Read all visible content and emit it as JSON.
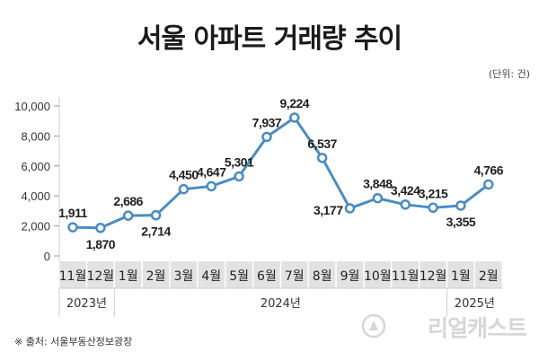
{
  "title": "서울 아파트 거래량 추이",
  "unit_label": "(단위: 건)",
  "source": "※ 출처: 서울부동산정보광장",
  "watermark": "리얼캐스트",
  "colors": {
    "line": "#4a8cc2",
    "axis_band": "#e2e2e2",
    "text": "#222222"
  },
  "chart_data": {
    "type": "line",
    "title": "서울 아파트 거래량 추이",
    "categories": [
      "11월",
      "12월",
      "1월",
      "2월",
      "3월",
      "4월",
      "5월",
      "6월",
      "7월",
      "8월",
      "9월",
      "10월",
      "11월",
      "12월",
      "1월",
      "2월"
    ],
    "groups": [
      {
        "label": "2023년",
        "start": 0,
        "end": 1
      },
      {
        "label": "2024년",
        "start": 2,
        "end": 13
      },
      {
        "label": "2025년",
        "start": 14,
        "end": 15
      }
    ],
    "series": [
      {
        "values": [
          1911,
          1870,
          2686,
          2714,
          4450,
          4647,
          5301,
          7937,
          9224,
          6537,
          3177,
          3848,
          3424,
          3215,
          3355,
          4766
        ]
      }
    ],
    "value_labels": [
      "1,911",
      "1,870",
      "2,686",
      "2,714",
      "4,450",
      "4,647",
      "5,301",
      "7,937",
      "9,224",
      "6,537",
      "3,177",
      "3,848",
      "3,424",
      "3,215",
      "3,355",
      "4,766"
    ],
    "y_ticks": [
      "0",
      "2,000",
      "4,000",
      "6,000",
      "8,000",
      "10,000"
    ],
    "y_tick_values": [
      0,
      2000,
      4000,
      6000,
      8000,
      10000
    ],
    "ylim": [
      0,
      10000
    ],
    "label_positions": [
      "above",
      "below",
      "above",
      "below",
      "above",
      "above",
      "above",
      "above",
      "above",
      "above",
      "left",
      "above",
      "above",
      "above",
      "below",
      "above"
    ],
    "grid": false
  }
}
